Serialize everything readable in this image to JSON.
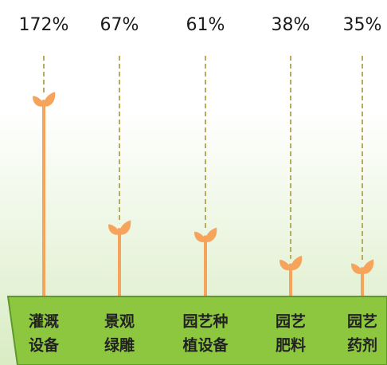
{
  "chart_data": {
    "type": "sprout",
    "categories": [
      [
        "灌溉",
        "设备"
      ],
      [
        "景观",
        "绿雕"
      ],
      [
        "园艺种",
        "植设备"
      ],
      [
        "园艺",
        "肥料"
      ],
      [
        "园艺",
        "药剂"
      ]
    ],
    "values": [
      172,
      67,
      61,
      38,
      35
    ],
    "value_labels": [
      "172%",
      "67%",
      "61%",
      "38%",
      "35%"
    ],
    "color": "#f6a45c",
    "ylim": [
      0,
      180
    ]
  }
}
